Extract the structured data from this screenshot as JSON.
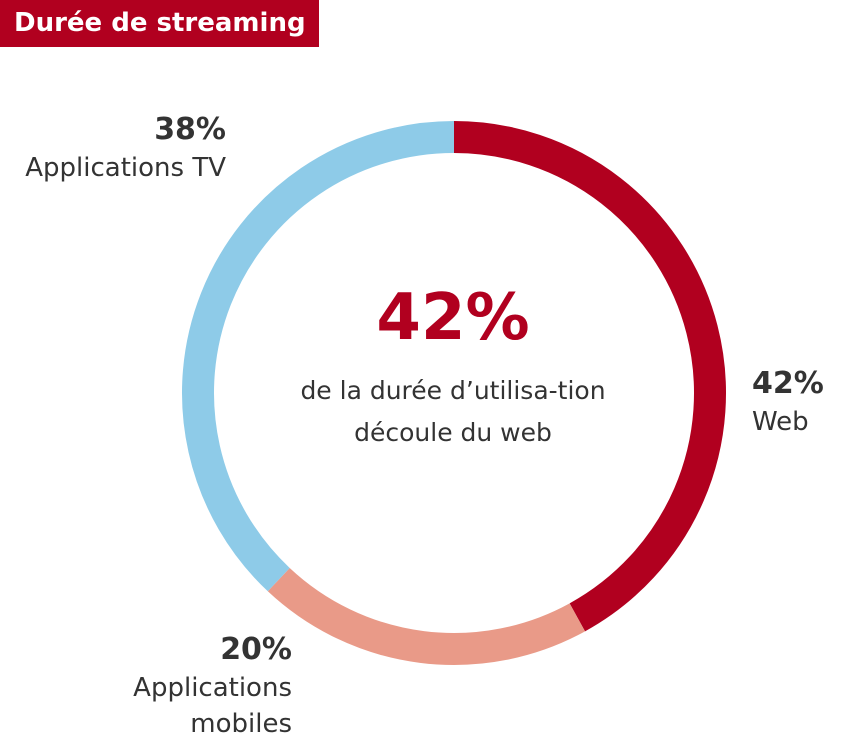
{
  "title": "Durée de streaming",
  "center": {
    "value": "42%",
    "text": "de la durée d’utilisa-tion découle du web"
  },
  "labels": {
    "web": {
      "pct": "42%",
      "name": "Web"
    },
    "mobile": {
      "pct": "20%",
      "name": "Applications mobiles"
    },
    "tv": {
      "pct": "38%",
      "name": "Applications TV"
    }
  },
  "chart_data": {
    "type": "pie",
    "title": "Durée de streaming",
    "categories": [
      "Web",
      "Applications mobiles",
      "Applications TV"
    ],
    "values": [
      42,
      20,
      38
    ],
    "unit": "%",
    "colors": [
      "#b1001f",
      "#e99a88",
      "#8ecbe8"
    ],
    "donut": true,
    "start_angle": "top",
    "direction": "clockwise"
  }
}
